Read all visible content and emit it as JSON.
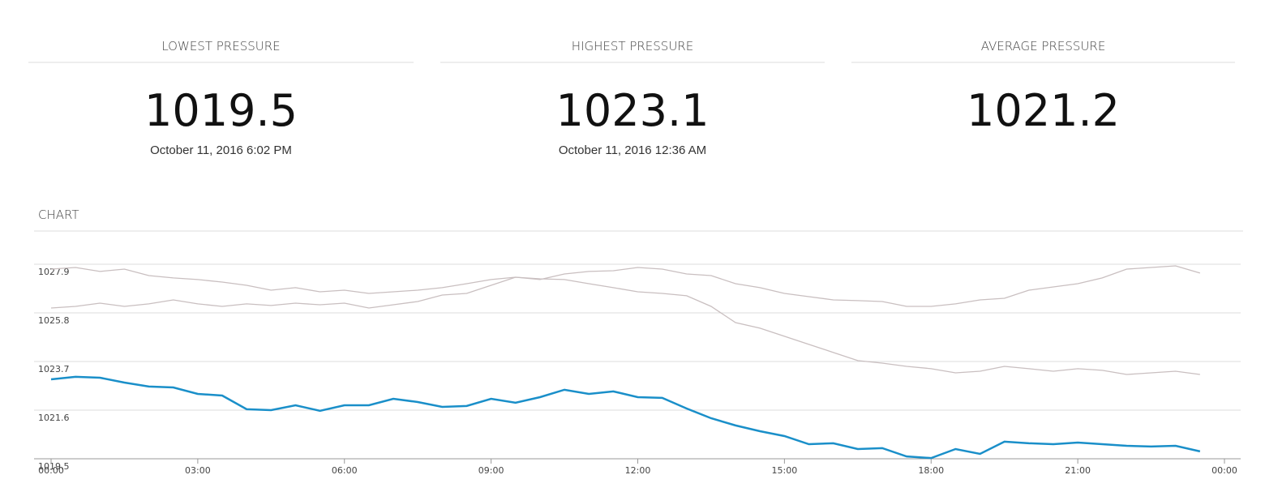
{
  "stats": [
    {
      "title": "LOWEST PRESSURE",
      "value": "1019.5",
      "date": "October 11, 2016 6:02 PM"
    },
    {
      "title": "HIGHEST PRESSURE",
      "value": "1023.1",
      "date": "October 11, 2016 12:36 AM"
    },
    {
      "title": "AVERAGE PRESSURE",
      "value": "1021.2"
    }
  ],
  "chart_title": "CHART",
  "chart_data": {
    "type": "line",
    "x": [
      0,
      0.5,
      1,
      1.5,
      2,
      2.5,
      3,
      3.5,
      4,
      4.5,
      5,
      5.5,
      6,
      6.5,
      7,
      7.5,
      8,
      8.5,
      9,
      9.5,
      10,
      10.5,
      11,
      11.5,
      12,
      12.5,
      13,
      13.5,
      14,
      14.5,
      15,
      15.5,
      16,
      16.5,
      17,
      17.5,
      18,
      18.5,
      19,
      19.5,
      20,
      20.5,
      21,
      21.5,
      22,
      22.5,
      23,
      23.5,
      24
    ],
    "xlim": [
      0,
      24
    ],
    "xticks": [
      {
        "value": 0,
        "label": "00:00"
      },
      {
        "value": 3,
        "label": "03:00"
      },
      {
        "value": 6,
        "label": "06:00"
      },
      {
        "value": 9,
        "label": "09:00"
      },
      {
        "value": 12,
        "label": "12:00"
      },
      {
        "value": 15,
        "label": "15:00"
      },
      {
        "value": 18,
        "label": "18:00"
      },
      {
        "value": 21,
        "label": "21:00"
      },
      {
        "value": 24,
        "label": "00:00"
      }
    ],
    "ylim": [
      1019.5,
      1027.9
    ],
    "yticks": [
      1019.5,
      1021.6,
      1023.7,
      1025.8,
      1027.9
    ],
    "grid": true,
    "series": [
      {
        "color": "#c9bfc0",
        "values": [
          1026.01,
          1026.08,
          1026.22,
          1026.08,
          1026.19,
          1026.36,
          1026.19,
          1026.08,
          1026.19,
          1026.12,
          1026.22,
          1026.15,
          1026.22,
          1026.01,
          1026.15,
          1026.29,
          1026.57,
          1026.64,
          1026.99,
          1027.34,
          1027.24,
          1027.48,
          1027.59,
          1027.62,
          1027.76,
          1027.69,
          1027.48,
          1027.41,
          1027.06,
          1026.89,
          1026.64,
          1026.5,
          1026.36,
          1026.33,
          1026.29,
          1026.08,
          1026.08,
          1026.19,
          1026.36,
          1026.43,
          1026.78,
          1026.92,
          1027.06,
          1027.31,
          1027.69,
          1027.76,
          1027.83,
          1027.52,
          null
        ]
      },
      {
        "color": "#c9bfc0",
        "values": [
          1027.69,
          1027.76,
          1027.59,
          1027.69,
          1027.41,
          1027.31,
          1027.24,
          1027.13,
          1026.99,
          1026.78,
          1026.89,
          1026.71,
          1026.78,
          1026.64,
          1026.71,
          1026.78,
          1026.89,
          1027.06,
          1027.24,
          1027.34,
          1027.27,
          1027.24,
          1027.06,
          1026.89,
          1026.71,
          1026.64,
          1026.54,
          1026.08,
          1025.38,
          1025.14,
          1024.79,
          1024.44,
          1024.09,
          1023.74,
          1023.63,
          1023.49,
          1023.39,
          1023.21,
          1023.28,
          1023.49,
          1023.39,
          1023.28,
          1023.39,
          1023.32,
          1023.14,
          1023.21,
          1023.28,
          1023.14,
          null
        ]
      },
      {
        "color": "#1a8fc9",
        "values": [
          1022.93,
          1023.04,
          1023.0,
          1022.79,
          1022.62,
          1022.58,
          1022.3,
          1022.23,
          1021.64,
          1021.6,
          1021.81,
          1021.57,
          1021.81,
          1021.81,
          1022.09,
          1021.95,
          1021.74,
          1021.78,
          1022.09,
          1021.92,
          1022.16,
          1022.48,
          1022.3,
          1022.41,
          1022.16,
          1022.13,
          1021.67,
          1021.25,
          1020.94,
          1020.69,
          1020.48,
          1020.13,
          1020.17,
          1019.92,
          1019.96,
          1019.6,
          1019.53,
          1019.92,
          1019.71,
          1020.24,
          1020.17,
          1020.13,
          1020.2,
          1020.13,
          1020.06,
          1020.03,
          1020.06,
          1019.82,
          null
        ]
      }
    ]
  }
}
